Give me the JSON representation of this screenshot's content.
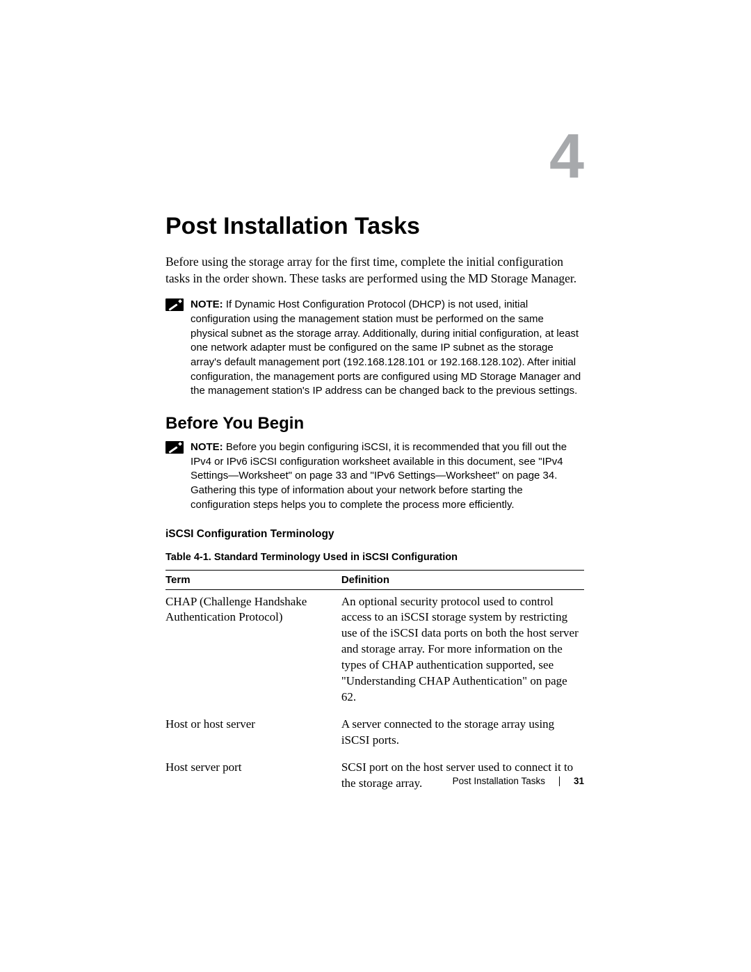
{
  "chapter_number": "4",
  "main_title": "Post Installation Tasks",
  "intro": "Before using the storage array for the first time, complete the initial configuration tasks in the order shown. These tasks are performed using the MD Storage Manager.",
  "note1": {
    "label": "NOTE:",
    "text": " If Dynamic Host Configuration Protocol (DHCP) is not used, initial configuration using the management station must be performed on the same physical subnet as the storage array. Additionally, during initial configuration, at least one network adapter must be configured on the same IP subnet as the storage array's default management port (192.168.128.101 or 192.168.128.102). After initial configuration, the management ports are configured using MD Storage Manager and the management station's IP address can be changed back to the previous settings."
  },
  "section_heading": "Before You Begin",
  "note2": {
    "label": "NOTE:",
    "text": " Before you begin configuring iSCSI, it is recommended that you fill out the IPv4 or IPv6 iSCSI configuration worksheet available in this document, see \"IPv4 Settings—Worksheet\" on page 33 and \"IPv6 Settings—Worksheet\" on page 34. Gathering this type of information about your network before starting the configuration steps helps you to complete the process more efficiently."
  },
  "subsection_heading": "iSCSI Configuration Terminology",
  "table_caption": "Table 4-1.   Standard Terminology Used in iSCSI Configuration",
  "table": {
    "headers": {
      "term": "Term",
      "def": "Definition"
    },
    "rows": [
      {
        "term": "CHAP (Challenge Handshake Authentication Protocol)",
        "def": "An optional security protocol used to control access to an iSCSI storage system by restricting use of the iSCSI data ports on both the host server and storage array. For more information on the types of CHAP authentication supported, see \"Understanding CHAP Authentication\" on page 62."
      },
      {
        "term": "Host or host server",
        "def": "A server connected to the storage array using iSCSI ports."
      },
      {
        "term": "Host server port",
        "def": "SCSI port on the host server used to connect it to the storage array."
      }
    ]
  },
  "footer": {
    "title": "Post Installation Tasks",
    "page": "31"
  }
}
